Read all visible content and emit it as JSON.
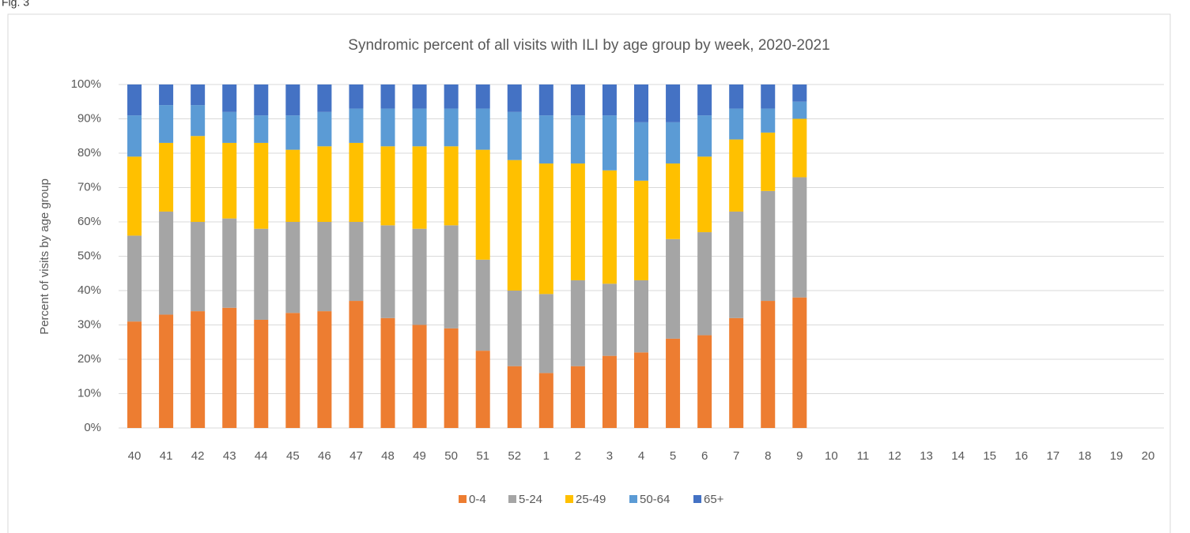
{
  "figure_label": "Fig. 3",
  "chart_data": {
    "type": "stacked_bar",
    "title": "Syndromic percent of all visits with ILI by age group by week, 2020-2021",
    "y_label": "Percent of visits by age group",
    "categories": [
      "40",
      "41",
      "42",
      "43",
      "44",
      "45",
      "46",
      "47",
      "48",
      "49",
      "50",
      "51",
      "52",
      "1",
      "2",
      "3",
      "4",
      "5",
      "6",
      "7",
      "8",
      "9",
      "10",
      "11",
      "12",
      "13",
      "14",
      "15",
      "16",
      "17",
      "18",
      "19",
      "20"
    ],
    "series": [
      {
        "name": "0-4",
        "color": "#ed7d31",
        "values": [
          31,
          33,
          34,
          35,
          31.5,
          33.5,
          34,
          37,
          32,
          30,
          29,
          22.5,
          18,
          16,
          18,
          21,
          22,
          26,
          27,
          32,
          37,
          38,
          null,
          null,
          null,
          null,
          null,
          null,
          null,
          null,
          null,
          null,
          null
        ]
      },
      {
        "name": "5-24",
        "color": "#a5a5a5",
        "values": [
          25,
          30,
          26,
          26,
          26.5,
          26.5,
          26,
          23,
          27,
          28,
          30,
          26.5,
          22,
          23,
          25,
          21,
          21,
          29,
          30,
          31,
          32,
          35,
          null,
          null,
          null,
          null,
          null,
          null,
          null,
          null,
          null,
          null,
          null
        ]
      },
      {
        "name": "25-49",
        "color": "#ffc000",
        "values": [
          23,
          20,
          25,
          22,
          25,
          21,
          22,
          23,
          23,
          24,
          23,
          32,
          38,
          38,
          34,
          33,
          29,
          22,
          22,
          21,
          17,
          17,
          null,
          null,
          null,
          null,
          null,
          null,
          null,
          null,
          null,
          null,
          null
        ]
      },
      {
        "name": "50-64",
        "color": "#5b9bd5",
        "values": [
          12,
          11,
          9,
          9,
          8,
          10,
          10,
          10,
          11,
          11,
          11,
          12,
          14,
          14,
          14,
          16,
          17,
          12,
          12,
          9,
          7,
          5,
          null,
          null,
          null,
          null,
          null,
          null,
          null,
          null,
          null,
          null,
          null
        ]
      },
      {
        "name": "65+",
        "color": "#4472c4",
        "values": [
          9,
          6,
          6,
          8,
          9,
          9,
          8,
          7,
          7,
          7,
          7,
          7,
          8,
          9,
          9,
          9,
          11,
          11,
          9,
          7,
          7,
          5,
          null,
          null,
          null,
          null,
          null,
          null,
          null,
          null,
          null,
          null,
          null
        ]
      }
    ],
    "ylim": [
      0,
      100
    ],
    "yticks": [
      {
        "value": 0,
        "label": "0%"
      },
      {
        "value": 10,
        "label": "10%"
      },
      {
        "value": 20,
        "label": "20%"
      },
      {
        "value": 30,
        "label": "30%"
      },
      {
        "value": 40,
        "label": "40%"
      },
      {
        "value": 50,
        "label": "50%"
      },
      {
        "value": 60,
        "label": "60%"
      },
      {
        "value": 70,
        "label": "70%"
      },
      {
        "value": 80,
        "label": "80%"
      },
      {
        "value": 90,
        "label": "90%"
      },
      {
        "value": 100,
        "label": "100%"
      }
    ],
    "grid": true,
    "legend": "bottom"
  }
}
